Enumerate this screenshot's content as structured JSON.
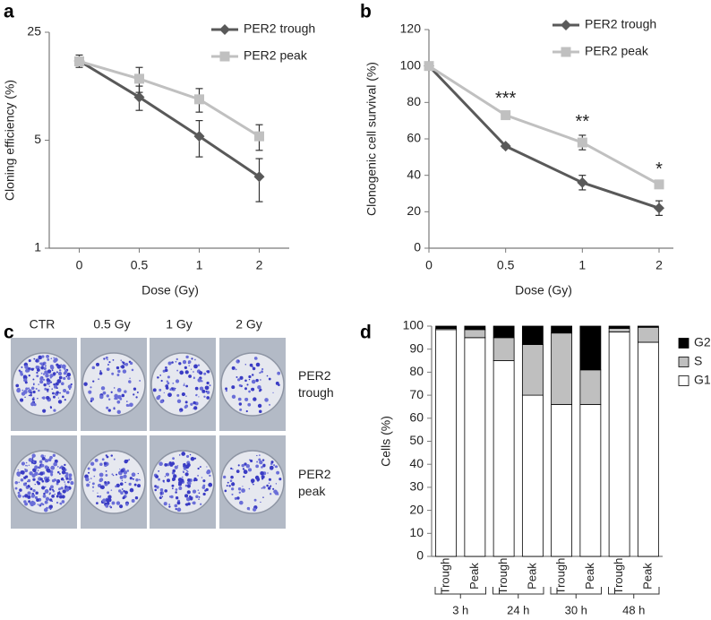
{
  "chart_data": [
    {
      "type": "line",
      "panel_label": "a",
      "y_label": "Cloning efficiency (%)",
      "x_label": "Dose (Gy)",
      "categories": [
        "0",
        "0.5",
        "1",
        "2"
      ],
      "ylim": [
        1,
        25
      ],
      "yticks": [
        1,
        5,
        25
      ],
      "log_y": true,
      "legend": "upper right",
      "series": [
        {
          "name": "PER2 trough",
          "color": "#595959",
          "marker": "diamond",
          "values": [
            16.3,
            9.5,
            5.3,
            2.9
          ],
          "errors": [
            1.5,
            1.7,
            1.4,
            0.9
          ]
        },
        {
          "name": "PER2 peak",
          "color": "#c0c0c0",
          "marker": "square",
          "values": [
            16.2,
            12.5,
            9.2,
            5.3
          ],
          "errors": [
            1.0,
            2.3,
            1.6,
            1.0
          ]
        }
      ]
    },
    {
      "type": "line",
      "panel_label": "b",
      "y_label": "Clonogenic cell survival (%)",
      "x_label": "Dose (Gy)",
      "categories": [
        "0",
        "0.5",
        "1",
        "2"
      ],
      "ylim": [
        0,
        120
      ],
      "yticks": [
        0,
        20,
        40,
        60,
        80,
        100,
        120
      ],
      "log_y": false,
      "legend": "upper right",
      "significance": [
        null,
        "***",
        "**",
        "*"
      ],
      "series": [
        {
          "name": "PER2 trough",
          "color": "#595959",
          "marker": "diamond",
          "values": [
            100,
            56,
            36,
            22
          ],
          "errors": [
            0,
            1,
            4,
            4
          ]
        },
        {
          "name": "PER2 peak",
          "color": "#c0c0c0",
          "marker": "square",
          "values": [
            100,
            73,
            58,
            35
          ],
          "errors": [
            0,
            2,
            4,
            1
          ]
        }
      ]
    },
    {
      "type": "bar",
      "stacked": true,
      "panel_label": "d",
      "y_label": "Cells (%)",
      "categories": [
        "Trough",
        "Peak",
        "Trough",
        "Peak",
        "Trough",
        "Peak",
        "Trough",
        "Peak"
      ],
      "groups": [
        "3 h",
        "24 h",
        "30 h",
        "48 h"
      ],
      "ylim": [
        0,
        100
      ],
      "yticks": [
        0,
        10,
        20,
        30,
        40,
        50,
        60,
        70,
        80,
        90,
        100
      ],
      "legend": "upper right",
      "series": [
        {
          "name": "G1",
          "color": "#ffffff",
          "values": [
            98.5,
            95,
            85,
            70,
            66,
            66,
            97.5,
            93
          ]
        },
        {
          "name": "S",
          "color": "#bfbfbf",
          "values": [
            0.5,
            3.5,
            10,
            22,
            31,
            15,
            1.5,
            6.5
          ]
        },
        {
          "name": "G2",
          "color": "#000000",
          "values": [
            1,
            1.5,
            5,
            8,
            3,
            19,
            1,
            0.5
          ]
        }
      ]
    }
  ],
  "image_panel": {
    "panel_label": "c",
    "columns": [
      "CTR",
      "0.5 Gy",
      "1 Gy",
      "2 Gy"
    ],
    "rows": [
      "PER2 trough",
      "PER2 peak"
    ]
  }
}
